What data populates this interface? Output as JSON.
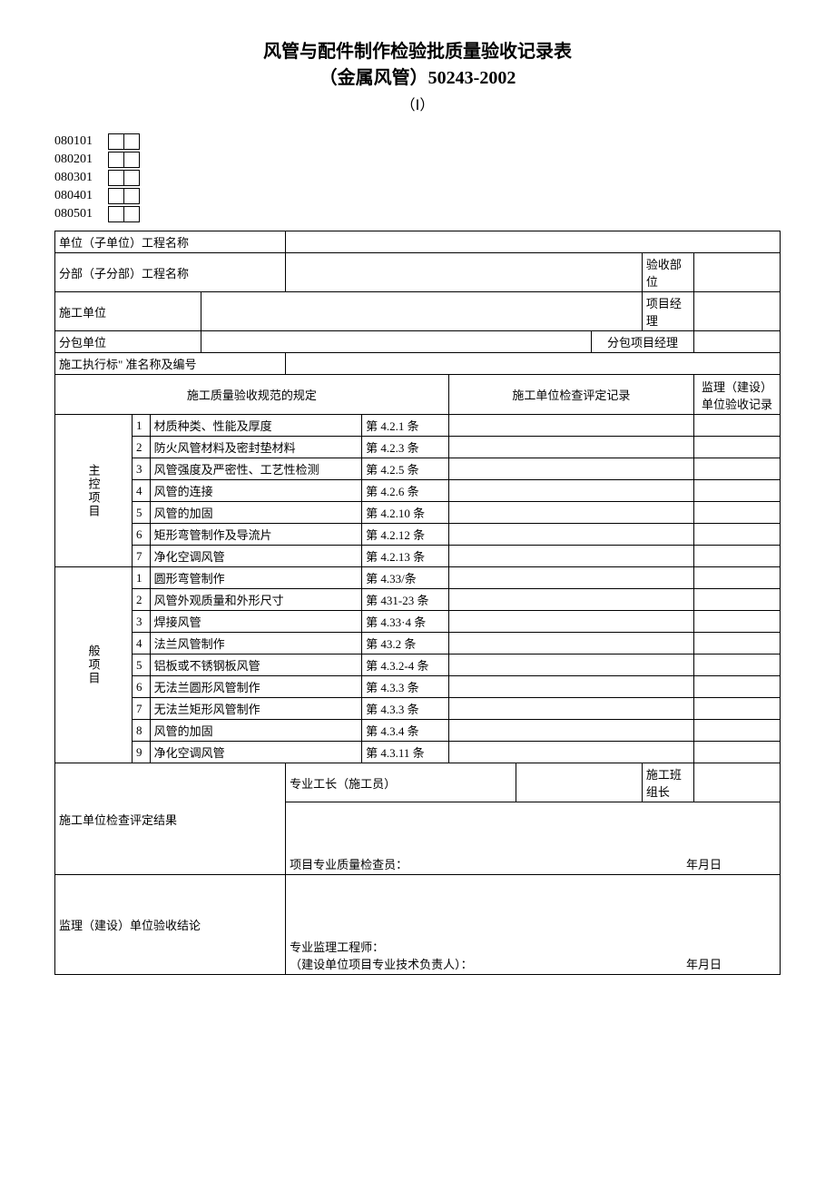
{
  "title": {
    "line1": "风管与配件制作检验批质量验收记录表",
    "line2": "（金属风管）50243-2002",
    "line3": "（Ⅰ）"
  },
  "codes": [
    "080101",
    "080201",
    "080301",
    "080401",
    "080501"
  ],
  "header_rows": {
    "r1_label": "单位（子单位）工程名称",
    "r2_label": "分部（子分部）工程名称",
    "r2_right": "验收部位",
    "r3_label": "施工单位",
    "r3_right": "项目经理",
    "r4_label": "分包单位",
    "r4_right": "分包项目经理",
    "r5_label": "施工执行标\"    准名称及编号"
  },
  "col_headers": {
    "c1": "施工质量验收规范的规定",
    "c2": "施工单位检查评定记录",
    "c3": "监理（建设）单位验收记录"
  },
  "group1": {
    "label": "主控项目",
    "rows": [
      {
        "n": "1",
        "item": "材质种类、性能及厚度",
        "ref": "第 4.2.1 条"
      },
      {
        "n": "2",
        "item": "防火风管材料及密封垫材料",
        "ref": "第 4.2.3 条"
      },
      {
        "n": "3",
        "item": "风管强度及严密性、工艺性检测",
        "ref": "第 4.2.5 条"
      },
      {
        "n": "4",
        "item": "风管的连接",
        "ref": "第 4.2.6 条"
      },
      {
        "n": "5",
        "item": "风管的加固",
        "ref": "第 4.2.10 条"
      },
      {
        "n": "6",
        "item": "矩形弯管制作及导流片",
        "ref": "第 4.2.12 条"
      },
      {
        "n": "7",
        "item": "净化空调风管",
        "ref": "第 4.2.13 条"
      }
    ]
  },
  "group2": {
    "label": "般项目",
    "rows": [
      {
        "n": "1",
        "item": "圆形弯管制作",
        "ref": "第 4.33/条"
      },
      {
        "n": "2",
        "item": "风管外观质量和外形尺寸",
        "ref": "第 431-23 条"
      },
      {
        "n": "3",
        "item": "焊接风管",
        "ref": "第 4.33·4 条"
      },
      {
        "n": "4",
        "item": "法兰风管制作",
        "ref": "第 43.2 条"
      },
      {
        "n": "5",
        "item": "铝板或不锈钢板风管",
        "ref": "第 4.3.2-4 条"
      },
      {
        "n": "6",
        "item": "无法兰圆形风管制作",
        "ref": "第 4.3.3 条"
      },
      {
        "n": "7",
        "item": "无法兰矩形风管制作",
        "ref": "第 4.3.3 条"
      },
      {
        "n": "8",
        "item": "风管的加固",
        "ref": "第 4.3.4 条"
      },
      {
        "n": "9",
        "item": "净化空调风管",
        "ref": "第 4.3.11 条"
      }
    ]
  },
  "footer": {
    "foreman_label": "专业工长（施工员）",
    "teamleader_label": "施工班组长",
    "result_label": "施工单位检查评定结果",
    "inspector_label": "项目专业质量检查员：",
    "date1": "年月日",
    "conclusion_label": "监理（建设）单位验收结论",
    "engineer_label": "专业监理工程师：",
    "owner_label": "（建设单位项目专业技术负责人）：",
    "date2": "年月日"
  },
  "style": {
    "border_color": "#000000",
    "background": "#ffffff",
    "title_fontsize": 20,
    "body_fontsize": 13
  }
}
